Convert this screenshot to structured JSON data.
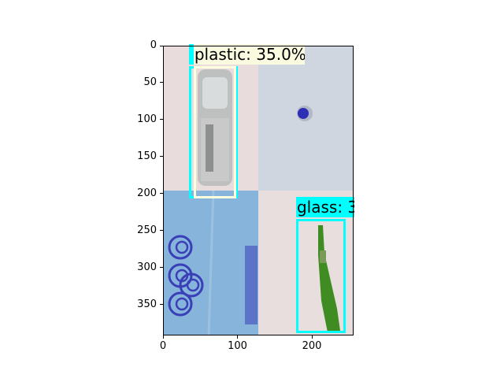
{
  "chart_data": {
    "type": "image",
    "xlim": [
      0,
      256
    ],
    "ylim": [
      392,
      0
    ],
    "x_ticks": [
      0,
      100,
      200
    ],
    "y_ticks": [
      0,
      50,
      100,
      150,
      200,
      250,
      300,
      350
    ],
    "colors": {
      "box_outline": "#00ffff",
      "box_outline_alt": "#ffffe0",
      "label_bg_plastic": "#fafae1",
      "label_bg_glass": "#00ffff"
    },
    "panels": [
      {
        "name": "top-left",
        "x": [
          0,
          128
        ],
        "y": [
          0,
          196
        ],
        "content": "plastic bottle on pinkish background",
        "bg": "#e8dadb"
      },
      {
        "name": "top-right",
        "x": [
          128,
          256
        ],
        "y": [
          0,
          196
        ],
        "content": "blue bottle cap on grey-blue background",
        "bg": "#cdd5df"
      },
      {
        "name": "bottom-left",
        "x": [
          0,
          128
        ],
        "y": [
          196,
          392
        ],
        "content": "blue cardboard with swirl print",
        "bg": "#87b3da"
      },
      {
        "name": "bottom-right",
        "x": [
          128,
          256
        ],
        "y": [
          196,
          392
        ],
        "content": "green glass bottle on pinkish background",
        "bg": "#e6dcdc"
      }
    ],
    "detections": [
      {
        "label": "plastic: 35.0%",
        "class": "plastic",
        "score": 35.0,
        "x0": 39,
        "y0": 30,
        "x1": 98,
        "y1": 205
      },
      {
        "label": "glass: 3",
        "class": "glass",
        "score": null,
        "x0": 183,
        "y0": 236,
        "x1": 243,
        "y1": 387
      }
    ]
  }
}
